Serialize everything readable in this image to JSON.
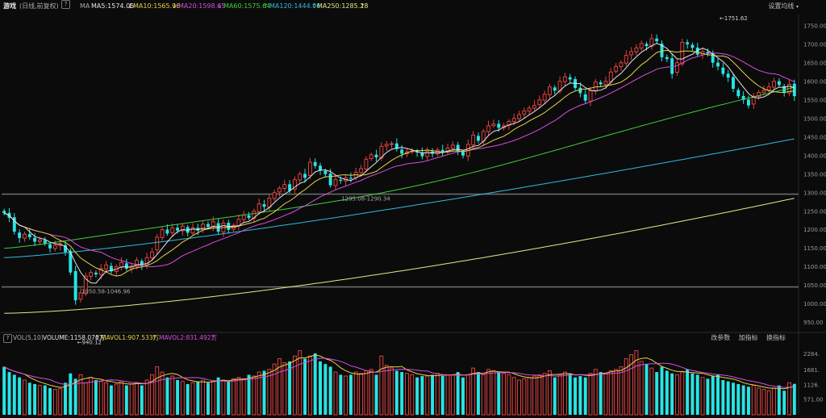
{
  "header": {
    "name": "游戏",
    "period": "(日线,前复权)",
    "help": "?",
    "ma_label": "MA",
    "ma5": "MA5:1574.05",
    "ma10": "MA10:1565.96",
    "ma20": "MA20:1598.65",
    "ma60": "MA60:1575.64",
    "ma120": "MA120:1444.06",
    "ma250": "MA250:1285.28",
    "settings": "设置均线"
  },
  "volume_header": {
    "help": "?",
    "label": "VOL(5,10)",
    "volume": "VOLUME:1158.070万",
    "mavol1": "MAVOL1:907.533万",
    "mavol2": "MAVOL2:831.492万",
    "buttons": [
      "改参数",
      "加指标",
      "换指标"
    ]
  },
  "colors": {
    "up": "#e0413f",
    "down": "#27e5e5",
    "ma5": "#e6e6e6",
    "ma10": "#e6d24a",
    "ma20": "#d84ee0",
    "ma60": "#3fcf3f",
    "ma120": "#33b8e0",
    "ma250": "#e6e68a",
    "bg": "#0b0b0b"
  },
  "chart_data": {
    "type": "candlestick",
    "y_ticks": [
      950,
      1000,
      1050,
      1100,
      1150,
      1200,
      1250,
      1300,
      1350,
      1400,
      1450,
      1500,
      1550,
      1600,
      1650,
      1700,
      1750
    ],
    "y_tick_labels": [
      "950.00",
      "1000.00",
      "1050.00",
      "1100.00",
      "1150.00",
      "1200.00",
      "1250.00",
      "1300.00",
      "1350.00",
      "1400.00",
      "1450.00",
      "1500.00",
      "1550.00",
      "1600.00",
      "1650.00",
      "1700.00",
      "1750.00"
    ],
    "ylim": [
      932,
      1780
    ],
    "horizontal_lines": [
      1296.0,
      1046.0
    ],
    "annotations": [
      {
        "label": "←1751.62",
        "index": 140,
        "value": 1751.62,
        "where": "above"
      },
      {
        "label": "←940.12",
        "index": 14,
        "value": 940.12,
        "where": "below"
      },
      {
        "label": "1295.08-1290.34",
        "index": 66,
        "value": 1296.0,
        "where": "line"
      },
      {
        "label": "1050.58-1046.96",
        "index": 15,
        "value": 1046.0,
        "where": "line"
      }
    ],
    "closes": [
      1245,
      1232,
      1195,
      1178,
      1188,
      1180,
      1168,
      1172,
      1163,
      1150,
      1158,
      1162,
      1140,
      1085,
      1010,
      1030,
      1075,
      1085,
      1080,
      1095,
      1105,
      1088,
      1100,
      1112,
      1095,
      1102,
      1118,
      1105,
      1125,
      1140,
      1180,
      1200,
      1190,
      1205,
      1198,
      1210,
      1192,
      1205,
      1198,
      1215,
      1208,
      1222,
      1195,
      1218,
      1200,
      1212,
      1228,
      1240,
      1232,
      1250,
      1270,
      1262,
      1285,
      1300,
      1312,
      1322,
      1305,
      1335,
      1350,
      1340,
      1382,
      1372,
      1360,
      1350,
      1320,
      1335,
      1332,
      1340,
      1338,
      1355,
      1365,
      1390,
      1402,
      1395,
      1425,
      1430,
      1432,
      1418,
      1405,
      1410,
      1412,
      1408,
      1398,
      1412,
      1405,
      1415,
      1410,
      1420,
      1428,
      1412,
      1400,
      1430,
      1455,
      1440,
      1465,
      1480,
      1485,
      1475,
      1480,
      1492,
      1500,
      1510,
      1520,
      1528,
      1535,
      1550,
      1565,
      1585,
      1575,
      1600,
      1612,
      1605,
      1582,
      1568,
      1548,
      1575,
      1598,
      1592,
      1600,
      1625,
      1640,
      1650,
      1670,
      1680,
      1690,
      1702,
      1695,
      1715,
      1708,
      1665,
      1660,
      1620,
      1650,
      1705,
      1700,
      1690,
      1672,
      1680,
      1675,
      1650,
      1640,
      1620,
      1610,
      1580,
      1560,
      1550,
      1535,
      1560,
      1570,
      1575,
      1585,
      1600,
      1590,
      1570,
      1592,
      1560
    ],
    "volumes": [
      1800,
      1600,
      1500,
      1400,
      1300,
      1200,
      1150,
      1100,
      1100,
      1000,
      950,
      980,
      1200,
      1550,
      1350,
      1500,
      1200,
      1400,
      1300,
      1250,
      1200,
      1100,
      1150,
      1250,
      1100,
      1150,
      1200,
      1100,
      1300,
      1500,
      1800,
      1600,
      1400,
      1450,
      1300,
      1250,
      1150,
      1200,
      1250,
      1300,
      1200,
      1250,
      1400,
      1300,
      1250,
      1350,
      1400,
      1350,
      1500,
      1450,
      1600,
      1650,
      1700,
      1900,
      2100,
      1950,
      2000,
      2200,
      2400,
      2100,
      2200,
      2300,
      2000,
      1900,
      1800,
      1600,
      1500,
      1450,
      1500,
      1600,
      1550,
      1650,
      1700,
      1500,
      2200,
      1850,
      1750,
      1650,
      1600,
      1550,
      1500,
      1400,
      1450,
      1450,
      1500,
      1550,
      1450,
      1500,
      1500,
      1600,
      1400,
      1500,
      1750,
      1600,
      1500,
      1700,
      1650,
      1600,
      1550,
      1500,
      1400,
      1300,
      1350,
      1400,
      1450,
      1500,
      1550,
      1650,
      1400,
      1500,
      1600,
      1550,
      1400,
      1450,
      1400,
      1550,
      1700,
      1600,
      1550,
      1650,
      1700,
      1800,
      2100,
      2250,
      2400,
      2000,
      1900,
      1750,
      1600,
      1800,
      1650,
      1550,
      1500,
      1600,
      1700,
      1550,
      1500,
      1400,
      1350,
      1450,
      1500,
      1300,
      1250,
      1200,
      1150,
      1100,
      1050,
      1100,
      1000,
      950,
      900,
      1000,
      1100,
      900,
      1200,
      1158
    ]
  }
}
